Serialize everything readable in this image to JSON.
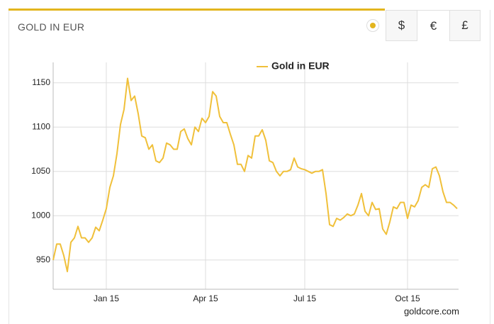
{
  "header": {
    "title": "GOLD IN EUR",
    "buttons": [
      "$",
      "€",
      "£"
    ]
  },
  "chart_data": {
    "type": "line",
    "categories": [
      null,
      null,
      null,
      null,
      null,
      null,
      null,
      null,
      null,
      null,
      null,
      null,
      null,
      null,
      null,
      "Jan 15",
      null,
      null,
      null,
      null,
      null,
      null,
      null,
      null,
      null,
      null,
      null,
      null,
      null,
      null,
      null,
      null,
      null,
      null,
      null,
      null,
      null,
      null,
      null,
      null,
      null,
      null,
      null,
      "Apr 15",
      null,
      null,
      null,
      null,
      null,
      null,
      null,
      null,
      null,
      null,
      null,
      null,
      null,
      null,
      null,
      null,
      null,
      null,
      null,
      null,
      null,
      null,
      null,
      null,
      null,
      null,
      null,
      "Jul 15",
      null,
      null,
      null,
      null,
      null,
      null,
      null,
      null,
      null,
      null,
      null,
      null,
      null,
      null,
      null,
      null,
      null,
      null,
      null,
      null,
      null,
      null,
      null,
      null,
      null,
      null,
      null,
      null,
      "Oct 15",
      null,
      null,
      null,
      null,
      null,
      null,
      null,
      null,
      null,
      null,
      null,
      null,
      null,
      null
    ],
    "series": [
      {
        "name": "Gold in EUR",
        "color": "#f0c03a",
        "values": [
          950,
          968,
          968,
          955,
          937,
          970,
          975,
          988,
          975,
          975,
          970,
          975,
          987,
          983,
          995,
          1008,
          1032,
          1045,
          1070,
          1103,
          1120,
          1155,
          1130,
          1135,
          1115,
          1090,
          1088,
          1075,
          1080,
          1062,
          1060,
          1065,
          1082,
          1080,
          1075,
          1075,
          1095,
          1098,
          1087,
          1080,
          1100,
          1095,
          1110,
          1105,
          1112,
          1140,
          1135,
          1112,
          1105,
          1105,
          1092,
          1080,
          1058,
          1058,
          1050,
          1068,
          1065,
          1090,
          1090,
          1097,
          1085,
          1062,
          1060,
          1050,
          1045,
          1050,
          1050,
          1052,
          1065,
          1055,
          1053,
          1052,
          1050,
          1048,
          1050,
          1050,
          1052,
          1025,
          990,
          988,
          997,
          995,
          998,
          1002,
          1000,
          1002,
          1012,
          1025,
          1005,
          1000,
          1015,
          1007,
          1008,
          985,
          979,
          993,
          1010,
          1008,
          1015,
          1015,
          997,
          1012,
          1010,
          1017,
          1032,
          1035,
          1032,
          1053,
          1055,
          1045,
          1027,
          1015,
          1015,
          1012,
          1008
        ]
      }
    ],
    "ylim": [
      917,
      1173
    ],
    "yticks": [
      950,
      1000,
      1050,
      1100,
      1150
    ],
    "grid": true,
    "legend": "top",
    "source": "goldcore.com"
  }
}
